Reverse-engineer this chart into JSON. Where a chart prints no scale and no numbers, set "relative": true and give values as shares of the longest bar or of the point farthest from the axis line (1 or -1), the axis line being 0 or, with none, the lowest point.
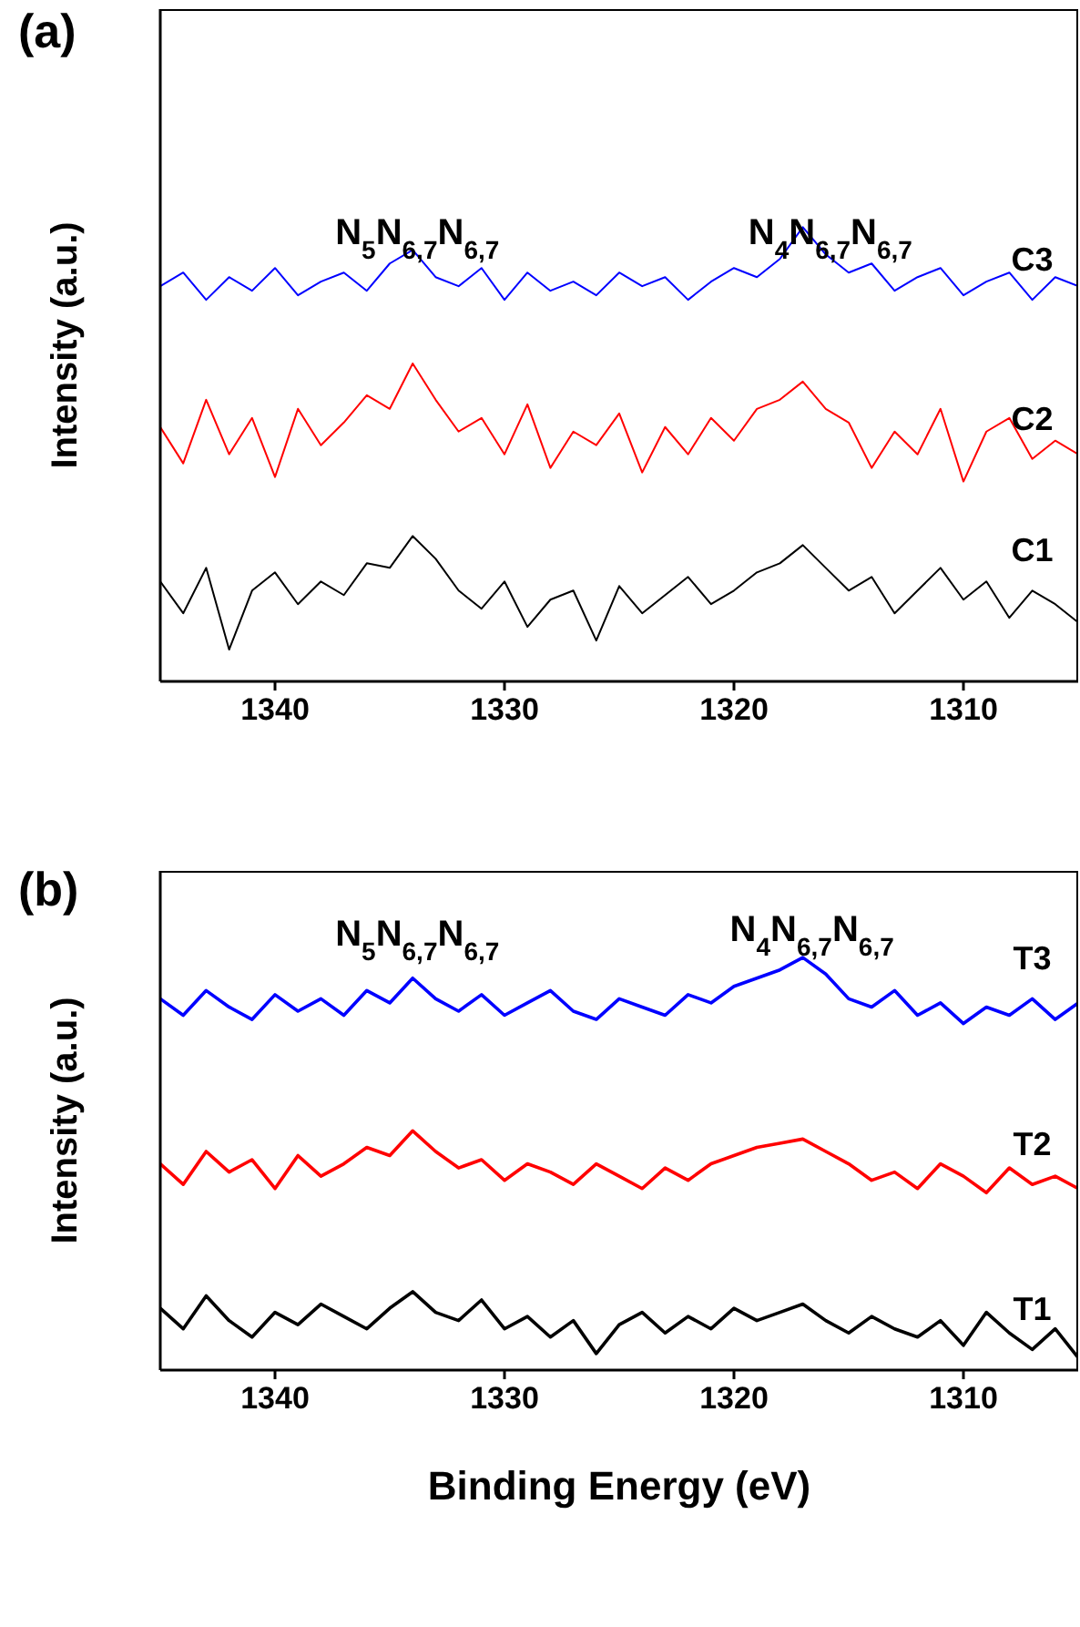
{
  "chart_data": [
    {
      "type": "line",
      "title": "(a)",
      "ylabel": "Intensity (a.u.)",
      "relative": true,
      "xlim": [
        1345,
        1305
      ],
      "xticks": [
        1340,
        1330,
        1320,
        1310
      ],
      "x": [
        1345,
        1344,
        1343,
        1342,
        1341,
        1340,
        1339,
        1338,
        1337,
        1336,
        1335,
        1334,
        1333,
        1332,
        1331,
        1330,
        1329,
        1328,
        1327,
        1326,
        1325,
        1324,
        1323,
        1322,
        1321,
        1320,
        1319,
        1318,
        1317,
        1316,
        1315,
        1314,
        1313,
        1312,
        1311,
        1310,
        1309,
        1308,
        1307,
        1306,
        1305
      ],
      "annotations": [
        "N$_{5}$N$_{6,7}$N$_{6,7}$",
        "N$_{4}$N$_{6,7}$N$_{6,7}$"
      ],
      "series": [
        {
          "name": "C1",
          "color": "#000000",
          "values": [
            0.22,
            0.15,
            0.25,
            0.07,
            0.2,
            0.24,
            0.17,
            0.22,
            0.19,
            0.26,
            0.25,
            0.32,
            0.27,
            0.2,
            0.16,
            0.22,
            0.12,
            0.18,
            0.2,
            0.09,
            0.21,
            0.15,
            0.19,
            0.23,
            0.17,
            0.2,
            0.24,
            0.26,
            0.3,
            0.25,
            0.2,
            0.23,
            0.15,
            0.2,
            0.25,
            0.18,
            0.22,
            0.14,
            0.2,
            0.17,
            0.13
          ]
        },
        {
          "name": "C2",
          "color": "#ff0000",
          "values": [
            0.56,
            0.48,
            0.62,
            0.5,
            0.58,
            0.45,
            0.6,
            0.52,
            0.57,
            0.63,
            0.6,
            0.7,
            0.62,
            0.55,
            0.58,
            0.5,
            0.61,
            0.47,
            0.55,
            0.52,
            0.59,
            0.46,
            0.56,
            0.5,
            0.58,
            0.53,
            0.6,
            0.62,
            0.66,
            0.6,
            0.57,
            0.47,
            0.55,
            0.5,
            0.6,
            0.44,
            0.55,
            0.58,
            0.49,
            0.53,
            0.5
          ]
        },
        {
          "name": "C3",
          "color": "#0000ff",
          "values": [
            0.87,
            0.9,
            0.84,
            0.89,
            0.86,
            0.91,
            0.85,
            0.88,
            0.9,
            0.86,
            0.92,
            0.95,
            0.89,
            0.87,
            0.91,
            0.84,
            0.9,
            0.86,
            0.88,
            0.85,
            0.9,
            0.87,
            0.89,
            0.84,
            0.88,
            0.91,
            0.89,
            0.93,
            1.0,
            0.94,
            0.9,
            0.92,
            0.86,
            0.89,
            0.91,
            0.85,
            0.88,
            0.9,
            0.84,
            0.89,
            0.87
          ]
        }
      ]
    },
    {
      "type": "line",
      "title": "(b)",
      "xlabel": "Binding Energy (eV)",
      "ylabel": "Intensity (a.u.)",
      "relative": true,
      "xlim": [
        1345,
        1305
      ],
      "xticks": [
        1340,
        1330,
        1320,
        1310
      ],
      "x": [
        1345,
        1344,
        1343,
        1342,
        1341,
        1340,
        1339,
        1338,
        1337,
        1336,
        1335,
        1334,
        1333,
        1332,
        1331,
        1330,
        1329,
        1328,
        1327,
        1326,
        1325,
        1324,
        1323,
        1322,
        1321,
        1320,
        1319,
        1318,
        1317,
        1316,
        1315,
        1314,
        1313,
        1312,
        1311,
        1310,
        1309,
        1308,
        1307,
        1306,
        1305
      ],
      "annotations": [
        "N$_{5}$N$_{6,7}$N$_{6,7}$",
        "N$_{4}$N$_{6,7}$N$_{6,7}$"
      ],
      "series": [
        {
          "name": "T1",
          "color": "#000000",
          "values": [
            0.15,
            0.1,
            0.18,
            0.12,
            0.08,
            0.14,
            0.11,
            0.16,
            0.13,
            0.1,
            0.15,
            0.19,
            0.14,
            0.12,
            0.17,
            0.1,
            0.13,
            0.08,
            0.12,
            0.04,
            0.11,
            0.14,
            0.09,
            0.13,
            0.1,
            0.15,
            0.12,
            0.14,
            0.16,
            0.12,
            0.09,
            0.13,
            0.1,
            0.08,
            0.12,
            0.06,
            0.14,
            0.09,
            0.05,
            0.1,
            0.03
          ]
        },
        {
          "name": "T2",
          "color": "#ff0000",
          "values": [
            0.5,
            0.45,
            0.53,
            0.48,
            0.51,
            0.44,
            0.52,
            0.47,
            0.5,
            0.54,
            0.52,
            0.58,
            0.53,
            0.49,
            0.51,
            0.46,
            0.5,
            0.48,
            0.45,
            0.5,
            0.47,
            0.44,
            0.49,
            0.46,
            0.5,
            0.52,
            0.54,
            0.55,
            0.56,
            0.53,
            0.5,
            0.46,
            0.48,
            0.44,
            0.5,
            0.47,
            0.43,
            0.49,
            0.45,
            0.47,
            0.44
          ]
        },
        {
          "name": "T3",
          "color": "#0000ff",
          "values": [
            0.9,
            0.86,
            0.92,
            0.88,
            0.85,
            0.91,
            0.87,
            0.9,
            0.86,
            0.92,
            0.89,
            0.95,
            0.9,
            0.87,
            0.91,
            0.86,
            0.89,
            0.92,
            0.87,
            0.85,
            0.9,
            0.88,
            0.86,
            0.91,
            0.89,
            0.93,
            0.95,
            0.97,
            1.0,
            0.96,
            0.9,
            0.88,
            0.92,
            0.86,
            0.89,
            0.84,
            0.88,
            0.86,
            0.9,
            0.85,
            0.89
          ]
        }
      ]
    }
  ]
}
